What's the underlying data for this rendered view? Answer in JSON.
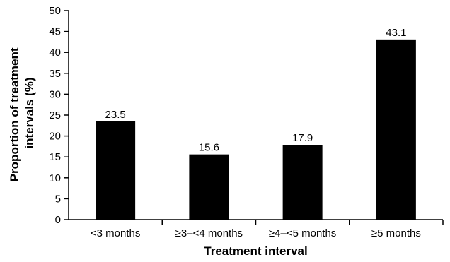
{
  "chart_data": {
    "type": "bar",
    "categories": [
      "<3 months",
      "≥3–<4 months",
      "≥4–<5 months",
      "≥5 months"
    ],
    "values": [
      23.5,
      15.6,
      17.9,
      43.1
    ],
    "data_labels": [
      "23.5",
      "15.6",
      "17.9",
      "43.1"
    ],
    "title": "",
    "xlabel": "Treatment interval",
    "ylabel_lines": [
      "Proportion of treatment",
      "intervals (%)"
    ],
    "ylim": [
      0,
      50
    ],
    "yticks": [
      0,
      5,
      10,
      15,
      20,
      25,
      30,
      35,
      40,
      45,
      50
    ],
    "grid": false,
    "bar_color": "#000000",
    "axis_color": "#000000"
  }
}
